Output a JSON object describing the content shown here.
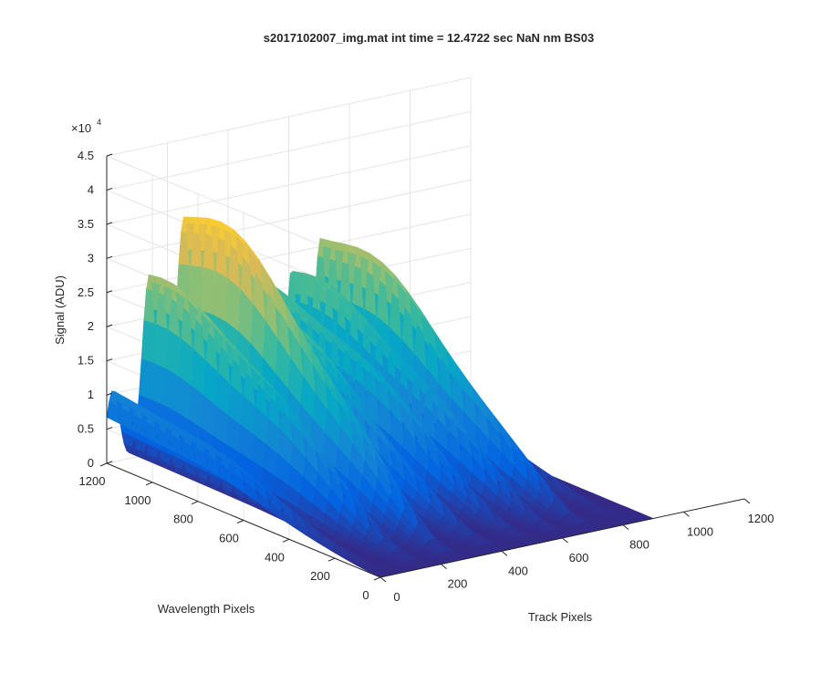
{
  "chart_data": {
    "type": "surface3d",
    "title": "s2017102007_img.mat int time = 12.4722 sec  NaN nm BS03",
    "xlabel": "Track Pixels",
    "ylabel": "Wavelength Pixels",
    "zlabel": "Signal (ADU)",
    "z_exponent_label": "×10",
    "z_exponent_power": "4",
    "xlim": [
      0,
      1200
    ],
    "ylim": [
      0,
      1200
    ],
    "zlim": [
      0,
      45000
    ],
    "x_ticks": [
      "0",
      "200",
      "400",
      "600",
      "800",
      "1000",
      "1200"
    ],
    "y_ticks": [
      "0",
      "200",
      "400",
      "600",
      "800",
      "1000",
      "1200"
    ],
    "z_ticks": [
      "0",
      "0.5",
      "1",
      "1.5",
      "2",
      "2.5",
      "3",
      "3.5",
      "4",
      "4.5"
    ],
    "grid": true,
    "colormap": "parula",
    "colormap_colors": [
      "#352a87",
      "#0363e1",
      "#1485d4",
      "#06a7c6",
      "#38b99e",
      "#92bf73",
      "#d9ba56",
      "#fcce2e",
      "#f9fb0e"
    ],
    "series": [
      {
        "track_center": [
          20,
          140,
          255,
          385,
          505,
          610,
          705,
          820
        ],
        "peak_signal": [
          11500,
          28500,
          36500,
          24500,
          24500,
          24500,
          28500,
          9000
        ],
        "track_width": [
          60,
          65,
          75,
          65,
          60,
          55,
          60,
          45
        ]
      }
    ]
  }
}
